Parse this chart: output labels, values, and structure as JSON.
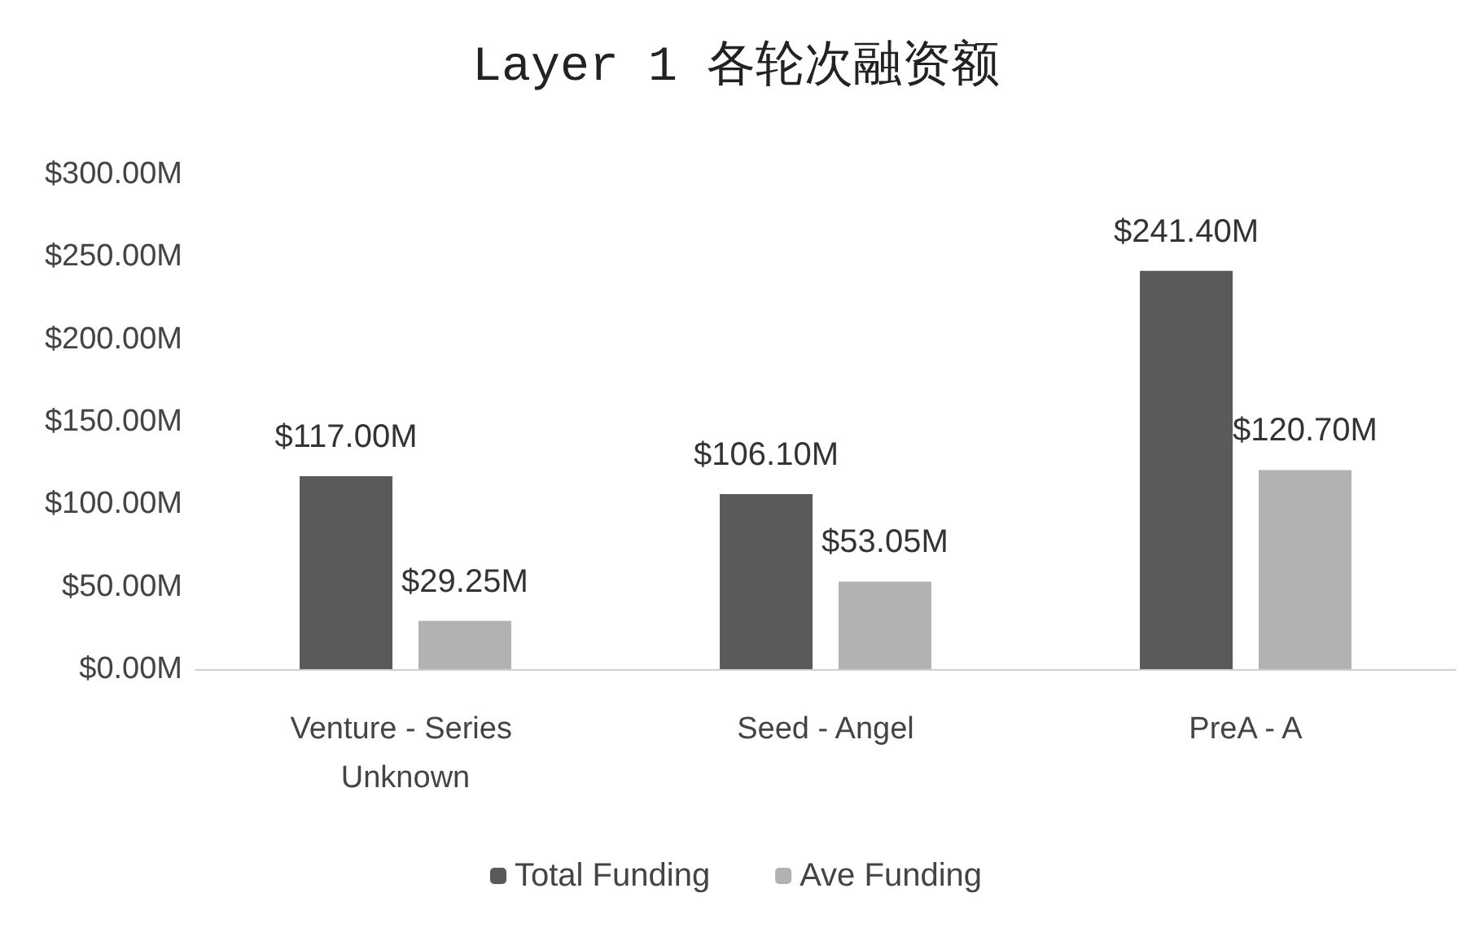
{
  "chart_data": {
    "type": "bar",
    "title": "Layer 1 各轮次融资额",
    "categories": [
      "Venture - Series Unknown",
      "Seed - Angel",
      "PreA - A"
    ],
    "series": [
      {
        "name": "Total Funding",
        "color": "#5a5a5a",
        "values": [
          117.0,
          106.1,
          241.4
        ],
        "value_labels": [
          "$117.00M",
          "$106.10M",
          "$241.40M"
        ]
      },
      {
        "name": "Ave Funding",
        "color": "#b2b2b2",
        "values": [
          29.25,
          53.05,
          120.7
        ],
        "value_labels": [
          "$29.25M",
          "$53.05M",
          "$120.70M"
        ]
      }
    ],
    "ylim": [
      0,
      300
    ],
    "yticks": [
      {
        "value": 0,
        "label": "$0.00M"
      },
      {
        "value": 50,
        "label": "$50.00M"
      },
      {
        "value": 100,
        "label": "$100.00M"
      },
      {
        "value": 150,
        "label": "$150.00M"
      },
      {
        "value": 200,
        "label": "$200.00M"
      },
      {
        "value": 250,
        "label": "$250.00M"
      },
      {
        "value": 300,
        "label": "$300.00M"
      }
    ],
    "grid": false,
    "legend": "bottom"
  }
}
